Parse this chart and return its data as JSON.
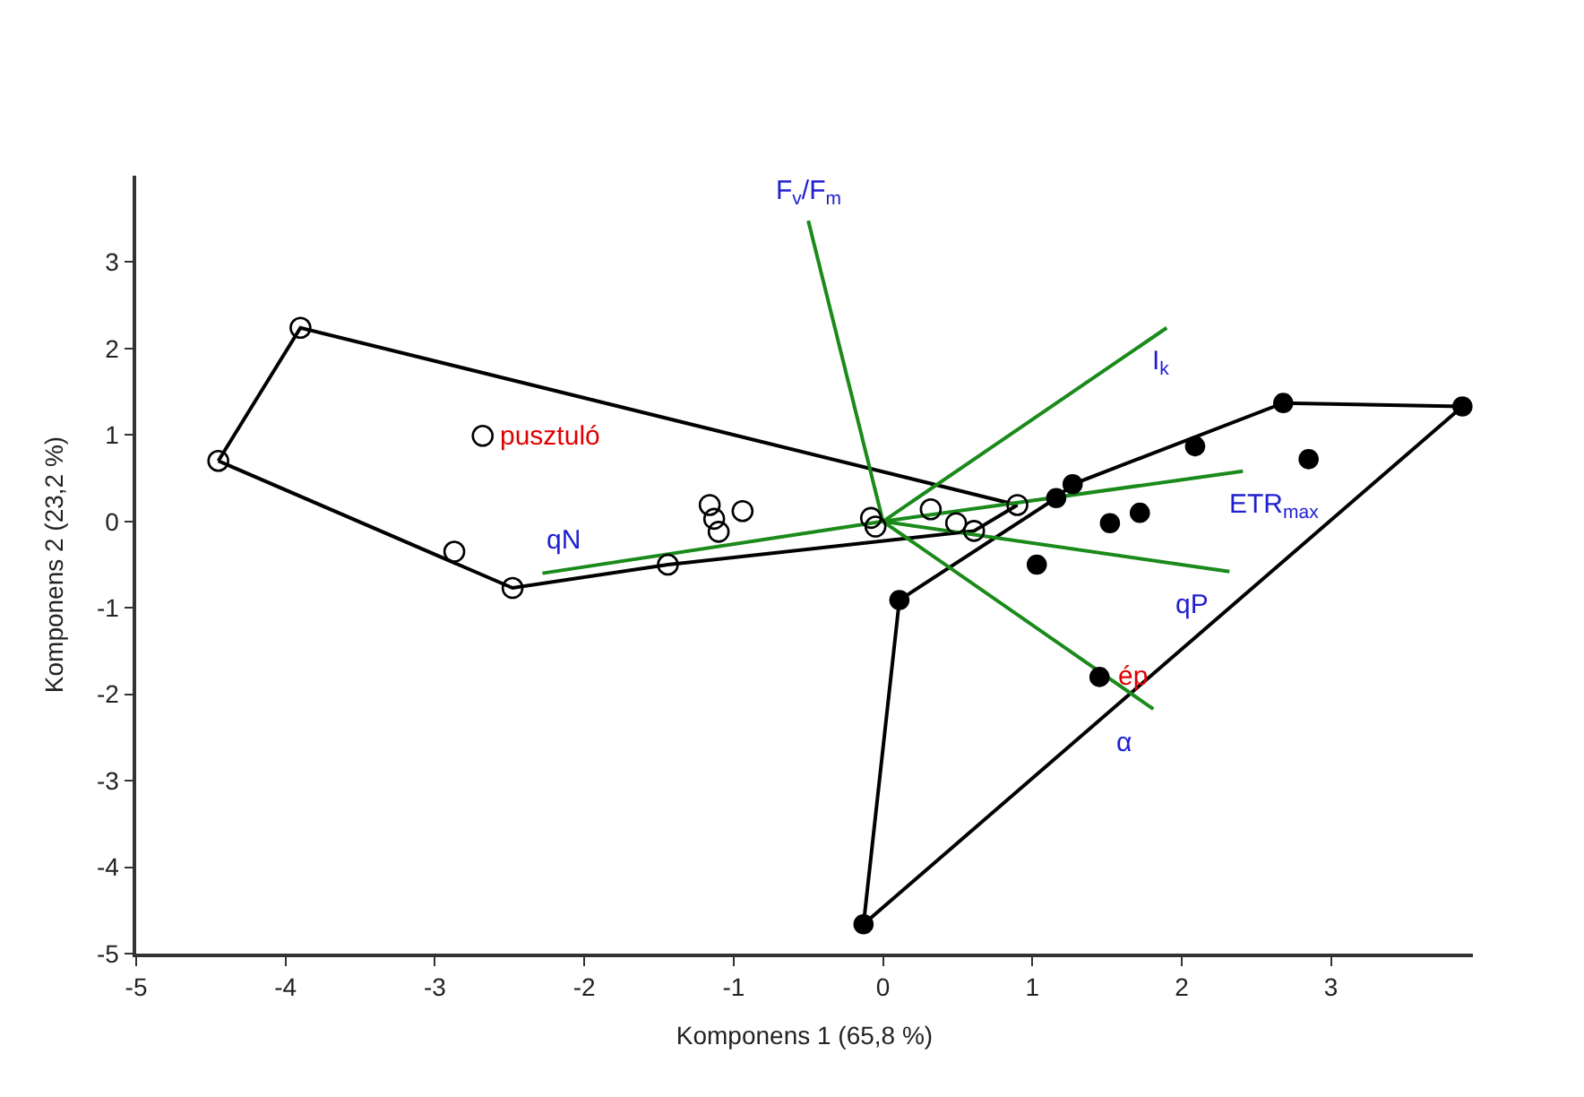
{
  "chart_data": {
    "type": "scatter",
    "xlabel": "Komponens 1 (65,8 %)",
    "ylabel": "Komponens 2 (23,2 %)",
    "xlim": [
      -5,
      3.95
    ],
    "ylim": [
      -5,
      4
    ],
    "xticks": [
      -5,
      -4,
      -3,
      -2,
      -1,
      0,
      1,
      2,
      3
    ],
    "yticks": [
      -5,
      -4,
      -3,
      -2,
      -1,
      0,
      1,
      2,
      3
    ],
    "legend": false,
    "series": [
      {
        "type": "line",
        "marker": "none",
        "color": "#000000",
        "x": [
          -4.45,
          -3.9,
          0.9
        ],
        "values": [
          0.7,
          2.24,
          0.19
        ]
      },
      {
        "type": "line",
        "marker": "none",
        "color": "#000000",
        "x": [
          -4.45,
          -2.48,
          -1.44,
          0.61,
          0.9
        ],
        "values": [
          0.7,
          -0.77,
          -0.5,
          -0.11,
          0.19
        ]
      },
      {
        "type": "line",
        "marker": "none",
        "color": "#000000",
        "x": [
          -0.13,
          0.11,
          1.16,
          1.27,
          2.68,
          3.88
        ],
        "values": [
          -4.66,
          -0.91,
          0.27,
          0.43,
          1.37,
          1.33
        ]
      },
      {
        "type": "line",
        "marker": "none",
        "color": "#000000",
        "x": [
          -0.13,
          3.88
        ],
        "values": [
          -4.66,
          1.33
        ]
      },
      {
        "type": "line",
        "marker": "none",
        "name": "F$_{v}$/F$_{m}$",
        "color": "#1a8a1a",
        "x": [
          0,
          -0.5
        ],
        "values": [
          0,
          3.48
        ]
      },
      {
        "type": "line",
        "marker": "none",
        "name": "I$_{k}$",
        "color": "#1a8a1a",
        "x": [
          0,
          1.9
        ],
        "values": [
          0,
          2.24
        ]
      },
      {
        "type": "line",
        "marker": "none",
        "name": "ETR$_{max}$",
        "color": "#1a8a1a",
        "x": [
          0,
          2.41
        ],
        "values": [
          0,
          0.58
        ]
      },
      {
        "type": "line",
        "marker": "none",
        "name": "qP",
        "color": "#1a8a1a",
        "x": [
          0,
          2.32
        ],
        "values": [
          0,
          -0.58
        ]
      },
      {
        "type": "line",
        "marker": "none",
        "name": "α",
        "color": "#1a8a1a",
        "x": [
          0,
          1.81
        ],
        "values": [
          0,
          -2.17
        ]
      },
      {
        "type": "line",
        "marker": "none",
        "name": "qN",
        "color": "#1a8a1a",
        "x": [
          0,
          -2.28
        ],
        "values": [
          0,
          -0.6
        ]
      },
      {
        "marker": "circle-open",
        "name": "pusztuló",
        "color": "#000000",
        "x": [
          -3.9,
          -4.45,
          -2.68,
          -2.87,
          -2.48,
          -1.44,
          -1.16,
          -1.13,
          -1.1,
          -0.94,
          -0.08,
          -0.05,
          0.32,
          0.49,
          0.61,
          0.9
        ],
        "values": [
          2.24,
          0.7,
          0.99,
          -0.35,
          -0.77,
          -0.5,
          0.19,
          0.03,
          -0.12,
          0.12,
          0.04,
          -0.06,
          0.14,
          -0.02,
          -0.11,
          0.19
        ]
      },
      {
        "marker": "circle",
        "name": "ép",
        "color": "#000000",
        "x": [
          1.16,
          1.27,
          2.09,
          2.68,
          3.88,
          2.85,
          1.52,
          1.72,
          1.03,
          0.11,
          1.45,
          -0.13
        ],
        "values": [
          0.27,
          0.43,
          0.87,
          1.37,
          1.33,
          0.72,
          -0.02,
          0.1,
          -0.5,
          -0.91,
          -1.8,
          -4.66
        ]
      }
    ]
  }
}
